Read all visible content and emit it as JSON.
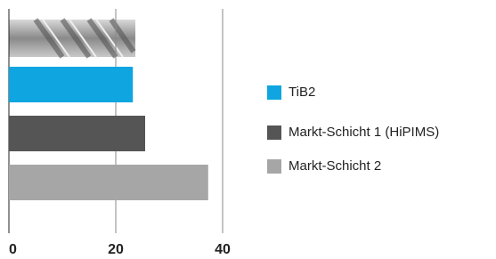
{
  "chart_data": {
    "type": "bar",
    "orientation": "horizontal",
    "series": [
      {
        "name": "TiB2",
        "color": "#0ea5e0",
        "values": [
          23.2
        ]
      },
      {
        "name": "Markt-Schicht 1 (HiPIMS)",
        "color": "#555555",
        "values": [
          25.5
        ]
      },
      {
        "name": "Markt-Schicht 2",
        "color": "#a6a6a6",
        "values": [
          37.3
        ]
      }
    ],
    "xlim": [
      0,
      40
    ],
    "xticks": [
      0,
      20,
      40
    ],
    "grid": true,
    "legend": "right"
  }
}
